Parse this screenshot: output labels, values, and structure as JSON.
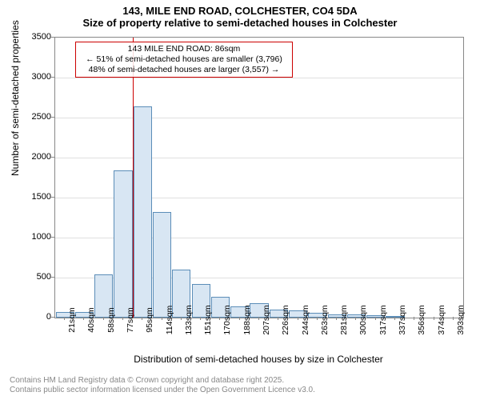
{
  "title_main": "143, MILE END ROAD, COLCHESTER, CO4 5DA",
  "title_sub": "Size of property relative to semi-detached houses in Colchester",
  "y_axis_title": "Number of semi-detached properties",
  "x_axis_title": "Distribution of semi-detached houses by size in Colchester",
  "footer_line1": "Contains HM Land Registry data © Crown copyright and database right 2025.",
  "footer_line2": "Contains public sector information licensed under the Open Government Licence v3.0.",
  "chart": {
    "type": "histogram",
    "background_color": "#ffffff",
    "grid_color": "#e0e0e0",
    "axis_color": "#888888",
    "bar_fill": "#d8e6f3",
    "bar_stroke": "#5b8db8",
    "vline_color": "#cc0000",
    "callout_border": "#cc0000",
    "ylim": [
      0,
      3500
    ],
    "ytick_step": 500,
    "yticks": [
      0,
      500,
      1000,
      1500,
      2000,
      2500,
      3000,
      3500
    ],
    "xticks": [
      "21sqm",
      "40sqm",
      "58sqm",
      "77sqm",
      "95sqm",
      "114sqm",
      "133sqm",
      "151sqm",
      "170sqm",
      "188sqm",
      "207sqm",
      "226sqm",
      "244sqm",
      "263sqm",
      "281sqm",
      "300sqm",
      "317sqm",
      "337sqm",
      "356sqm",
      "374sqm",
      "393sqm"
    ],
    "bars": [
      70,
      70,
      540,
      1840,
      2640,
      1320,
      600,
      420,
      260,
      140,
      180,
      100,
      90,
      60,
      40,
      40,
      30,
      20,
      0,
      0,
      0
    ],
    "vline_index": 3.5,
    "callout": {
      "line1": "143 MILE END ROAD: 86sqm",
      "line2": "← 51% of semi-detached houses are smaller (3,796)",
      "line3": "48% of semi-detached houses are larger (3,557) →"
    }
  }
}
